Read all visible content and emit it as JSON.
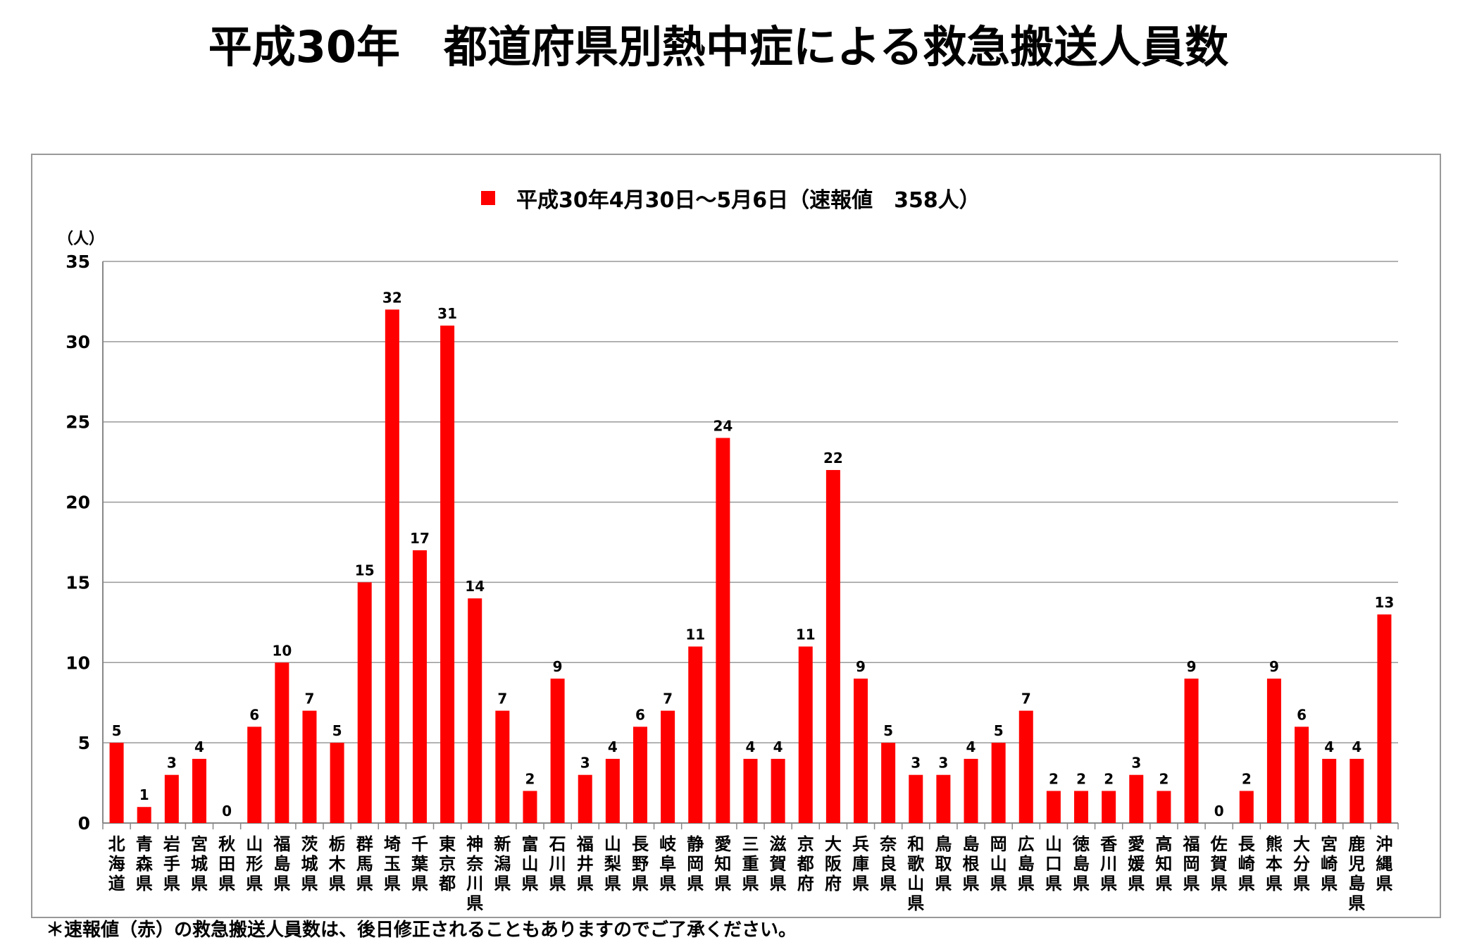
{
  "chart_data": {
    "type": "bar",
    "title": "平成30年　都道府県別熱中症による救急搬送人員数",
    "legend": [
      "平成30年4月30日～5月6日（速報値　358人）"
    ],
    "legend_placement": "top-center",
    "ylabel": "（人）",
    "xlabel": "",
    "ylim": [
      0,
      35
    ],
    "yticks": [
      0,
      5,
      10,
      15,
      20,
      25,
      30,
      35
    ],
    "grid": true,
    "categories": [
      "北海道",
      "青森県",
      "岩手県",
      "宮城県",
      "秋田県",
      "山形県",
      "福島県",
      "茨城県",
      "栃木県",
      "群馬県",
      "埼玉県",
      "千葉県",
      "東京都",
      "神奈川県",
      "新潟県",
      "富山県",
      "石川県",
      "福井県",
      "山梨県",
      "長野県",
      "岐阜県",
      "静岡県",
      "愛知県",
      "三重県",
      "滋賀県",
      "京都府",
      "大阪府",
      "兵庫県",
      "奈良県",
      "和歌山県",
      "鳥取県",
      "島根県",
      "岡山県",
      "広島県",
      "山口県",
      "徳島県",
      "香川県",
      "愛媛県",
      "高知県",
      "福岡県",
      "佐賀県",
      "長崎県",
      "熊本県",
      "大分県",
      "宮崎県",
      "鹿児島県",
      "沖縄県"
    ],
    "series": [
      {
        "name": "平成30年4月30日～5月6日（速報値　358人）",
        "color": "#ff0000",
        "values": [
          5,
          1,
          3,
          4,
          0,
          6,
          10,
          7,
          5,
          15,
          32,
          17,
          31,
          14,
          7,
          2,
          9,
          3,
          4,
          6,
          7,
          11,
          24,
          4,
          4,
          11,
          22,
          9,
          5,
          3,
          3,
          4,
          5,
          7,
          2,
          2,
          2,
          3,
          2,
          9,
          0,
          2,
          9,
          6,
          4,
          4,
          13
        ]
      }
    ]
  },
  "footnote": "＊速報値（赤）の救急搬送人員数は、後日修正されることもありますのでご了承ください。"
}
